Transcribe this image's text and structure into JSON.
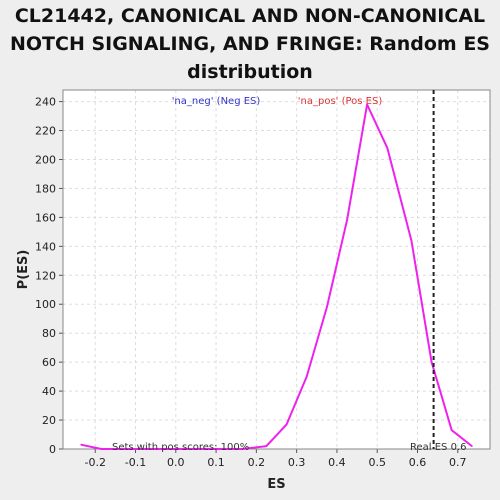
{
  "chart_data": {
    "type": "line",
    "title_lines": [
      "CL21442, CANONICAL AND NON-CANONICAL",
      "NOTCH SIGNALING, AND FRINGE: Random ES",
      "distribution"
    ],
    "xlabel": "ES",
    "ylabel": "P(ES)",
    "xlim": [
      -0.28,
      0.78
    ],
    "ylim": [
      0,
      248
    ],
    "xticks": [
      -0.2,
      -0.1,
      0.0,
      0.1,
      0.2,
      0.3,
      0.4,
      0.5,
      0.6,
      0.7
    ],
    "xtick_labels": [
      "-0.2",
      "-0.1",
      "0.0",
      "0.1",
      "0.2",
      "0.3",
      "0.4",
      "0.5",
      "0.6",
      "0.7"
    ],
    "yticks": [
      0,
      20,
      40,
      60,
      80,
      100,
      120,
      140,
      160,
      180,
      200,
      220,
      240
    ],
    "ytick_labels": [
      "0",
      "20",
      "40",
      "60",
      "80",
      "100",
      "120",
      "140",
      "160",
      "180",
      "200",
      "220",
      "240"
    ],
    "grid": true,
    "series": [
      {
        "color": "#ee22ee",
        "x": [
          -0.235,
          -0.185,
          -0.135,
          -0.085,
          -0.035,
          0.015,
          0.065,
          0.115,
          0.165,
          0.225,
          0.275,
          0.325,
          0.375,
          0.425,
          0.475,
          0.525,
          0.585,
          0.635,
          0.685,
          0.735
        ],
        "y": [
          3,
          0,
          0,
          0,
          0,
          0,
          0,
          0,
          0,
          2,
          17,
          50,
          98,
          158,
          238,
          208,
          144,
          60,
          13,
          2
        ]
      }
    ],
    "real_es": 0.64,
    "real_es_color": "#222222",
    "annotations": {
      "neg_label": "'na_neg' (Neg ES)",
      "neg_color": "#3333cc",
      "pos_label": "'na_pos' (Pos ES)",
      "pos_color": "#dd3333",
      "sets_text": "Sets with pos scores: 100%",
      "real_es_text": "Real ES 0.6"
    }
  }
}
